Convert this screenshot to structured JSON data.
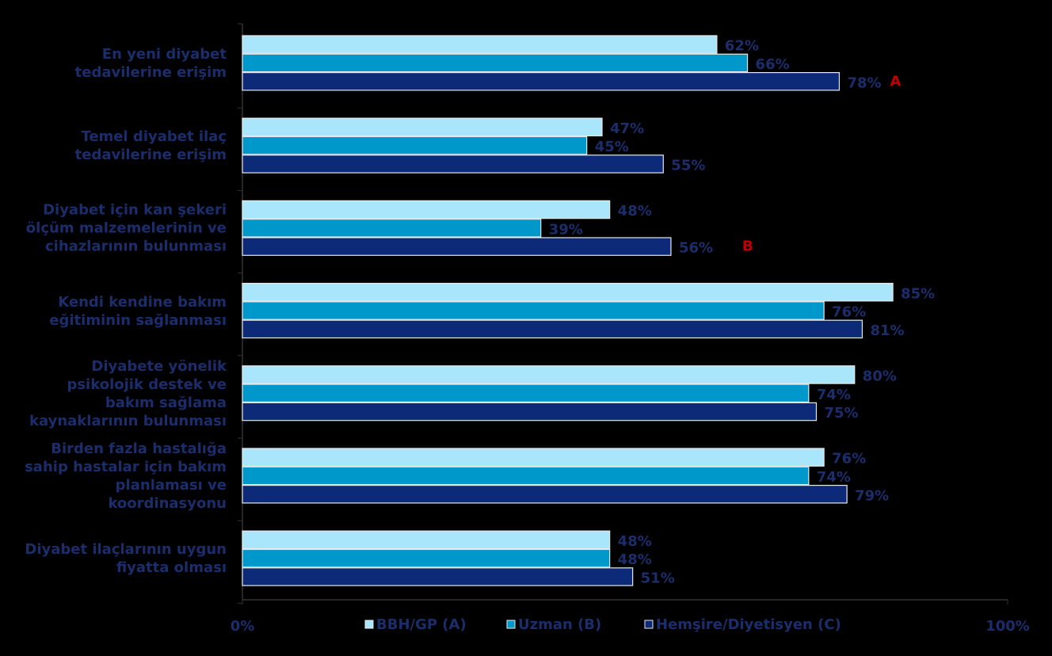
{
  "chart_data": {
    "type": "bar",
    "orientation": "horizontal",
    "categories": [
      "En yeni diyabet\ntedavilerine erişim",
      "Temel diyabet ilaç\ntedavilerine erişim",
      "Diyabet için kan şekeri\nölçüm malzemelerinin ve\ncihazlarının bulunması",
      "Kendi kendine bakım\neğitiminin sağlanması",
      "Diyabete yönelik\npsikolojik destek ve\nbakım sağlama\nkaynaklarının bulunması",
      "Birden fazla hastalığa\nsahip hastalar için bakım\nplanlaması ve\nkoordinasyonu",
      "Diyabet ilaçlarının uygun\nfiyatta olması"
    ],
    "series": [
      {
        "name": "BBH/GP (A)",
        "color": "#a9e6fb",
        "values": [
          62,
          47,
          48,
          85,
          80,
          76,
          48
        ],
        "value_labels": [
          "62%",
          "47%",
          "48%",
          "85%",
          "80%",
          "76%",
          "48%"
        ]
      },
      {
        "name": "Uzman (B)",
        "color": "#0097cb",
        "values": [
          66,
          45,
          39,
          76,
          74,
          74,
          48
        ],
        "value_labels": [
          "66%",
          "45%",
          "39%",
          "76%",
          "74%",
          "74%",
          "48%"
        ]
      },
      {
        "name": "Hemşire/Diyetisyen (C)",
        "color": "#0c2a78",
        "values": [
          78,
          55,
          56,
          81,
          75,
          79,
          51
        ],
        "value_labels": [
          "78%",
          "55%",
          "56%",
          "81%",
          "75%",
          "79%",
          "51%"
        ]
      }
    ],
    "annotations": [
      "A",
      "B"
    ],
    "xlim": [
      0,
      100
    ],
    "xticks": [
      {
        "value": 0,
        "label": "0%"
      },
      {
        "value": 100,
        "label": "100%"
      }
    ]
  }
}
